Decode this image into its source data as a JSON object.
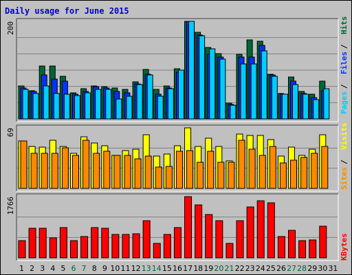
{
  "colors": {
    "background": "#c0c0c0",
    "frame": "#000000",
    "grid": "#808080",
    "title": "#0000cc",
    "hits": "#006633",
    "files": "#0033ff",
    "pages": "#00ccff",
    "visits": "#ffff00",
    "sites": "#ff8800",
    "kbytes": "#ff0000",
    "weekend_day_label": "#006633",
    "weekday_day_label": "#000000"
  },
  "chart_data": [
    {
      "type": "bar",
      "title": "Daily usage for June 2015",
      "panel": "hits_files_pages",
      "ylim": [
        0,
        200
      ],
      "y_tick_label": "200",
      "categories": [
        "1",
        "2",
        "3",
        "4",
        "5",
        "6",
        "7",
        "8",
        "9",
        "10",
        "11",
        "12",
        "13",
        "14",
        "15",
        "16",
        "17",
        "18",
        "19",
        "20",
        "21",
        "22",
        "23",
        "24",
        "25",
        "26",
        "27",
        "28",
        "29",
        "30",
        "31"
      ],
      "weekend_days": [
        "6",
        "7",
        "13",
        "14",
        "20",
        "21",
        "27",
        "28"
      ],
      "series": [
        {
          "name": "Hits",
          "values": [
            67,
            58,
            108,
            108,
            88,
            53,
            62,
            67,
            66,
            64,
            61,
            76,
            102,
            60,
            68,
            103,
            200,
            177,
            146,
            134,
            32,
            133,
            162,
            159,
            91,
            52,
            86,
            57,
            50,
            78,
            0
          ]
        },
        {
          "name": "Files",
          "values": [
            63,
            56,
            90,
            82,
            78,
            50,
            56,
            66,
            63,
            56,
            54,
            72,
            92,
            50,
            64,
            96,
            200,
            172,
            132,
            127,
            30,
            127,
            127,
            150,
            90,
            51,
            77,
            52,
            43,
            58,
            0
          ]
        },
        {
          "name": "Pages",
          "values": [
            60,
            52,
            68,
            52,
            51,
            48,
            53,
            61,
            61,
            41,
            47,
            70,
            90,
            47,
            62,
            100,
            200,
            171,
            143,
            123,
            28,
            113,
            112,
            140,
            88,
            50,
            71,
            51,
            40,
            62,
            0
          ]
        }
      ],
      "legend": [
        "Pages",
        "Files",
        "Hits"
      ],
      "legend_position": "right"
    },
    {
      "type": "bar",
      "panel": "visits_sites",
      "ylim": [
        0,
        69
      ],
      "y_tick_label": "69",
      "categories": [
        "1",
        "2",
        "3",
        "4",
        "5",
        "6",
        "7",
        "8",
        "9",
        "10",
        "11",
        "12",
        "13",
        "14",
        "15",
        "16",
        "17",
        "18",
        "19",
        "20",
        "21",
        "22",
        "23",
        "24",
        "25",
        "26",
        "27",
        "28",
        "29",
        "30",
        "31"
      ],
      "series": [
        {
          "name": "Visits",
          "values": [
            54,
            48,
            47,
            55,
            48,
            40,
            59,
            52,
            49,
            38,
            43,
            45,
            61,
            37,
            39,
            49,
            69,
            48,
            57,
            48,
            31,
            62,
            60,
            60,
            56,
            37,
            47,
            38,
            45,
            61,
            0
          ]
        },
        {
          "name": "Sites",
          "values": [
            54,
            40,
            40,
            40,
            46,
            38,
            55,
            40,
            42,
            38,
            38,
            34,
            37,
            24,
            25,
            42,
            43,
            30,
            42,
            30,
            30,
            55,
            45,
            38,
            48,
            29,
            32,
            35,
            40,
            48,
            0
          ]
        }
      ],
      "legend": [
        "Sites",
        "Visits"
      ],
      "legend_position": "right"
    },
    {
      "type": "bar",
      "panel": "kbytes",
      "ylim": [
        0,
        1766
      ],
      "y_tick_label": "1766",
      "categories": [
        "1",
        "2",
        "3",
        "4",
        "5",
        "6",
        "7",
        "8",
        "9",
        "10",
        "11",
        "12",
        "13",
        "14",
        "15",
        "16",
        "17",
        "18",
        "19",
        "20",
        "21",
        "22",
        "23",
        "24",
        "25",
        "26",
        "27",
        "28",
        "29",
        "30",
        "31"
      ],
      "series": [
        {
          "name": "KBytes",
          "values": [
            502,
            854,
            854,
            580,
            873,
            502,
            614,
            873,
            854,
            672,
            672,
            692,
            1075,
            412,
            672,
            873,
            1766,
            1533,
            1255,
            1066,
            419,
            1066,
            1465,
            1650,
            1582,
            614,
            794,
            502,
            521,
            903,
            0
          ]
        }
      ],
      "legend": [
        "KBytes"
      ],
      "legend_position": "right"
    }
  ]
}
